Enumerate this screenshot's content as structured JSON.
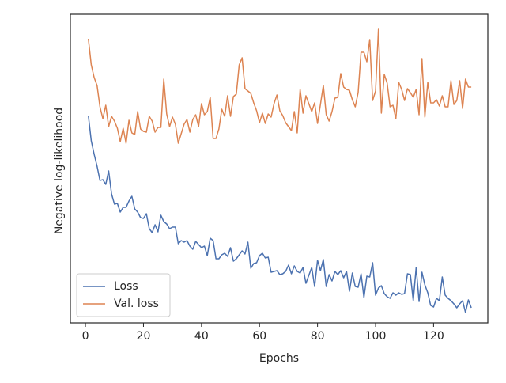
{
  "chart_data": {
    "type": "line",
    "xlabel": "Epochs",
    "ylabel": "Negative log-likelihood",
    "x": [
      1,
      2,
      3,
      4,
      5,
      6,
      7,
      8,
      9,
      10,
      11,
      12,
      13,
      14,
      15,
      16,
      17,
      18,
      19,
      20,
      21,
      22,
      23,
      24,
      25,
      26,
      27,
      28,
      29,
      30,
      31,
      32,
      33,
      34,
      35,
      36,
      37,
      38,
      39,
      40,
      41,
      42,
      43,
      44,
      45,
      46,
      47,
      48,
      49,
      50,
      51,
      52,
      53,
      54,
      55,
      56,
      57,
      58,
      59,
      60,
      61,
      62,
      63,
      64,
      65,
      66,
      67,
      68,
      69,
      70,
      71,
      72,
      73,
      74,
      75,
      76,
      77,
      78,
      79,
      80,
      81,
      82,
      83,
      84,
      85,
      86,
      87,
      88,
      89,
      90,
      91,
      92,
      93,
      94,
      95,
      96,
      97,
      98,
      99,
      100,
      101,
      102,
      103,
      104,
      105,
      106,
      107,
      108,
      109,
      110,
      111,
      112,
      113,
      114,
      115,
      116,
      117,
      118,
      119,
      120,
      121,
      122,
      123,
      124,
      125,
      126,
      127,
      128,
      129,
      130,
      131,
      132,
      133
    ],
    "series": [
      {
        "name": "Loss",
        "color": "#4c72b0",
        "values": [
          262,
          230,
          213,
          198,
          180,
          181,
          175,
          192,
          163,
          150,
          151,
          140,
          146,
          146,
          154,
          160,
          144,
          140,
          133,
          132,
          138,
          119,
          114,
          124,
          115,
          136,
          128,
          125,
          119,
          121,
          121,
          100,
          104,
          102,
          104,
          97,
          93,
          103,
          99,
          95,
          97,
          85,
          107,
          104,
          81,
          81,
          86,
          88,
          84,
          95,
          78,
          81,
          86,
          91,
          87,
          102,
          69,
          75,
          76,
          85,
          88,
          82,
          83,
          64,
          65,
          66,
          61,
          62,
          65,
          73,
          62,
          72,
          65,
          63,
          70,
          50,
          60,
          70,
          46,
          79,
          66,
          80,
          46,
          61,
          53,
          65,
          61,
          66,
          57,
          65,
          40,
          63,
          46,
          45,
          62,
          32,
          59,
          58,
          76,
          35,
          44,
          47,
          37,
          33,
          31,
          38,
          35,
          38,
          36,
          37,
          62,
          61,
          28,
          70,
          27,
          64,
          48,
          38,
          22,
          20,
          31,
          28,
          58,
          35,
          31,
          28,
          24,
          19,
          24,
          28,
          13,
          29,
          19
        ]
      },
      {
        "name": "Val. loss",
        "color": "#dd8452",
        "values": [
          359,
          326,
          310,
          300,
          273,
          258,
          275,
          248,
          261,
          255,
          246,
          229,
          246,
          227,
          256,
          240,
          238,
          267,
          245,
          242,
          241,
          261,
          255,
          241,
          247,
          247,
          308,
          264,
          248,
          260,
          251,
          227,
          239,
          251,
          257,
          241,
          257,
          263,
          248,
          277,
          263,
          267,
          285,
          233,
          233,
          245,
          270,
          261,
          287,
          261,
          286,
          289,
          326,
          335,
          296,
          293,
          290,
          278,
          268,
          253,
          265,
          252,
          264,
          260,
          277,
          288,
          268,
          262,
          253,
          248,
          243,
          267,
          240,
          295,
          265,
          287,
          277,
          267,
          278,
          252,
          276,
          300,
          263,
          255,
          267,
          284,
          285,
          315,
          298,
          295,
          294,
          282,
          273,
          291,
          342,
          342,
          330,
          358,
          281,
          293,
          371,
          265,
          314,
          303,
          273,
          275,
          258,
          304,
          295,
          281,
          296,
          291,
          285,
          295,
          263,
          334,
          260,
          304,
          278,
          278,
          282,
          274,
          287,
          273,
          273,
          306,
          276,
          281,
          306,
          271,
          308,
          298,
          298
        ]
      }
    ],
    "xlim": [
      -5.2,
      138.7
    ],
    "xticks": [
      0,
      20,
      40,
      60,
      80,
      100,
      120
    ],
    "ylim": [
      0,
      390
    ],
    "legend": "lower left"
  }
}
